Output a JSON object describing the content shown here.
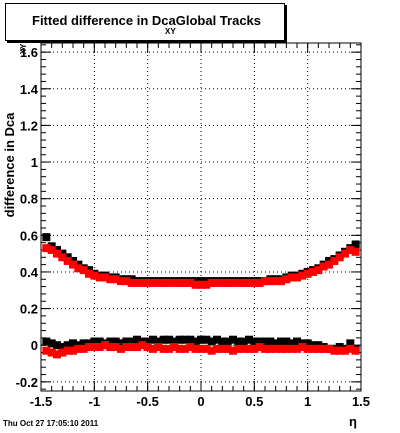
{
  "chart_data": {
    "type": "scatter",
    "title_main": "Fitted difference in Dca",
    "title_sub": "XY",
    "title_tail": "Global Tracks",
    "xlabel": "η",
    "ylabel": "difference in Dca",
    "ylabel_sub": "XY",
    "xlim": [
      -1.5,
      1.5
    ],
    "ylim": [
      -0.25,
      1.65
    ],
    "x_ticks": [
      -1.5,
      -1,
      -0.5,
      0,
      0.5,
      1,
      1.5
    ],
    "x_tick_labels": [
      "-1.5",
      "-1",
      "-0.5",
      "0",
      "0.5",
      "1",
      "1.5"
    ],
    "y_ticks": [
      -0.2,
      0,
      0.2,
      0.4,
      0.6,
      0.8,
      1,
      1.2,
      1.4,
      1.6
    ],
    "y_tick_labels": [
      "-0.2",
      "0",
      "0.2",
      "0.4",
      "0.6",
      "0.8",
      "1",
      "1.2",
      "1.4",
      "1.6"
    ],
    "grid": true,
    "series": [
      {
        "color": "#000000",
        "x": [
          -1.45,
          -1.4,
          -1.35,
          -1.3,
          -1.25,
          -1.2,
          -1.15,
          -1.1,
          -1.05,
          -1.0,
          -0.95,
          -0.9,
          -0.85,
          -0.8,
          -0.75,
          -0.7,
          -0.65,
          -0.6,
          -0.55,
          -0.5,
          -0.45,
          -0.4,
          -0.35,
          -0.3,
          -0.25,
          -0.2,
          -0.15,
          -0.1,
          -0.05,
          0.0,
          0.05,
          0.1,
          0.15,
          0.2,
          0.25,
          0.3,
          0.35,
          0.4,
          0.45,
          0.5,
          0.55,
          0.6,
          0.65,
          0.7,
          0.75,
          0.8,
          0.85,
          0.9,
          0.95,
          1.0,
          1.05,
          1.1,
          1.15,
          1.2,
          1.25,
          1.3,
          1.35,
          1.4,
          1.45
        ],
        "y": [
          0.59,
          0.54,
          0.52,
          0.5,
          0.48,
          0.46,
          0.44,
          0.42,
          0.41,
          0.39,
          0.38,
          0.38,
          0.37,
          0.37,
          0.36,
          0.36,
          0.36,
          0.35,
          0.35,
          0.35,
          0.35,
          0.35,
          0.35,
          0.35,
          0.35,
          0.35,
          0.35,
          0.35,
          0.35,
          0.35,
          0.35,
          0.35,
          0.35,
          0.35,
          0.35,
          0.35,
          0.35,
          0.35,
          0.35,
          0.35,
          0.35,
          0.35,
          0.36,
          0.36,
          0.36,
          0.37,
          0.38,
          0.38,
          0.39,
          0.4,
          0.41,
          0.42,
          0.44,
          0.46,
          0.47,
          0.49,
          0.51,
          0.53,
          0.55
        ]
      },
      {
        "color": "#ff0000",
        "x": [
          -1.45,
          -1.4,
          -1.35,
          -1.3,
          -1.25,
          -1.2,
          -1.15,
          -1.1,
          -1.05,
          -1.0,
          -0.95,
          -0.9,
          -0.85,
          -0.8,
          -0.75,
          -0.7,
          -0.65,
          -0.6,
          -0.55,
          -0.5,
          -0.45,
          -0.4,
          -0.35,
          -0.3,
          -0.25,
          -0.2,
          -0.15,
          -0.1,
          -0.05,
          0.0,
          0.05,
          0.1,
          0.15,
          0.2,
          0.25,
          0.3,
          0.35,
          0.4,
          0.45,
          0.5,
          0.55,
          0.6,
          0.65,
          0.7,
          0.75,
          0.8,
          0.85,
          0.9,
          0.95,
          1.0,
          1.05,
          1.1,
          1.15,
          1.2,
          1.25,
          1.3,
          1.35,
          1.4,
          1.45
        ],
        "y": [
          0.53,
          0.52,
          0.5,
          0.48,
          0.46,
          0.44,
          0.42,
          0.41,
          0.39,
          0.38,
          0.37,
          0.37,
          0.36,
          0.36,
          0.35,
          0.35,
          0.34,
          0.34,
          0.34,
          0.34,
          0.34,
          0.34,
          0.34,
          0.34,
          0.34,
          0.34,
          0.34,
          0.34,
          0.33,
          0.33,
          0.33,
          0.34,
          0.34,
          0.34,
          0.34,
          0.34,
          0.34,
          0.34,
          0.34,
          0.34,
          0.34,
          0.35,
          0.35,
          0.35,
          0.35,
          0.36,
          0.37,
          0.37,
          0.38,
          0.39,
          0.4,
          0.41,
          0.43,
          0.44,
          0.46,
          0.48,
          0.5,
          0.52,
          0.51
        ]
      },
      {
        "color": "#000000",
        "x": [
          -1.45,
          -1.4,
          -1.35,
          -1.3,
          -1.25,
          -1.2,
          -1.15,
          -1.1,
          -1.05,
          -1.0,
          -0.95,
          -0.9,
          -0.85,
          -0.8,
          -0.75,
          -0.7,
          -0.65,
          -0.6,
          -0.55,
          -0.5,
          -0.45,
          -0.4,
          -0.35,
          -0.3,
          -0.25,
          -0.2,
          -0.15,
          -0.1,
          -0.05,
          0.0,
          0.05,
          0.1,
          0.15,
          0.2,
          0.25,
          0.3,
          0.35,
          0.4,
          0.45,
          0.5,
          0.55,
          0.6,
          0.65,
          0.7,
          0.75,
          0.8,
          0.85,
          0.9,
          0.95,
          1.0,
          1.05,
          1.1,
          1.15,
          1.2,
          1.25,
          1.3,
          1.35,
          1.4,
          1.45
        ],
        "y": [
          0.02,
          0.01,
          0.0,
          -0.01,
          0.0,
          0.01,
          0.0,
          0.01,
          0.01,
          0.02,
          0.02,
          0.01,
          0.02,
          0.02,
          0.01,
          0.02,
          0.02,
          0.03,
          0.02,
          0.02,
          0.03,
          0.02,
          0.03,
          0.03,
          0.02,
          0.03,
          0.03,
          0.03,
          0.02,
          0.03,
          0.03,
          0.02,
          0.03,
          0.02,
          0.02,
          0.03,
          0.02,
          0.02,
          0.03,
          0.02,
          0.02,
          0.02,
          0.02,
          0.01,
          0.02,
          0.02,
          0.01,
          0.02,
          0.01,
          0.01,
          0.0,
          0.0,
          -0.01,
          -0.02,
          -0.02,
          -0.01,
          -0.02,
          0.01,
          -0.02
        ]
      },
      {
        "color": "#ff0000",
        "x": [
          -1.45,
          -1.4,
          -1.35,
          -1.3,
          -1.25,
          -1.2,
          -1.15,
          -1.1,
          -1.05,
          -1.0,
          -0.95,
          -0.9,
          -0.85,
          -0.8,
          -0.75,
          -0.7,
          -0.65,
          -0.6,
          -0.55,
          -0.5,
          -0.45,
          -0.4,
          -0.35,
          -0.3,
          -0.25,
          -0.2,
          -0.15,
          -0.1,
          -0.05,
          0.0,
          0.05,
          0.1,
          0.15,
          0.2,
          0.25,
          0.3,
          0.35,
          0.4,
          0.45,
          0.5,
          0.55,
          0.6,
          0.65,
          0.7,
          0.75,
          0.8,
          0.85,
          0.9,
          0.95,
          1.0,
          1.05,
          1.1,
          1.15,
          1.2,
          1.25,
          1.3,
          1.35,
          1.4,
          1.45
        ],
        "y": [
          -0.03,
          -0.04,
          -0.05,
          -0.04,
          -0.03,
          -0.03,
          -0.02,
          -0.02,
          -0.01,
          -0.01,
          -0.01,
          0.0,
          -0.01,
          -0.01,
          -0.02,
          -0.01,
          -0.01,
          -0.01,
          0.0,
          -0.01,
          -0.02,
          -0.01,
          -0.02,
          -0.02,
          -0.01,
          -0.02,
          -0.02,
          -0.01,
          -0.02,
          -0.02,
          -0.02,
          -0.03,
          -0.02,
          -0.02,
          -0.02,
          -0.03,
          -0.02,
          -0.02,
          -0.02,
          -0.02,
          -0.01,
          -0.02,
          -0.02,
          -0.02,
          -0.02,
          -0.02,
          -0.02,
          -0.02,
          -0.01,
          -0.02,
          -0.02,
          -0.02,
          -0.02,
          -0.02,
          -0.03,
          -0.03,
          -0.03,
          -0.02,
          -0.03
        ]
      }
    ]
  },
  "footer": {
    "date": "Thu Oct 27 17:05:10 2011"
  }
}
